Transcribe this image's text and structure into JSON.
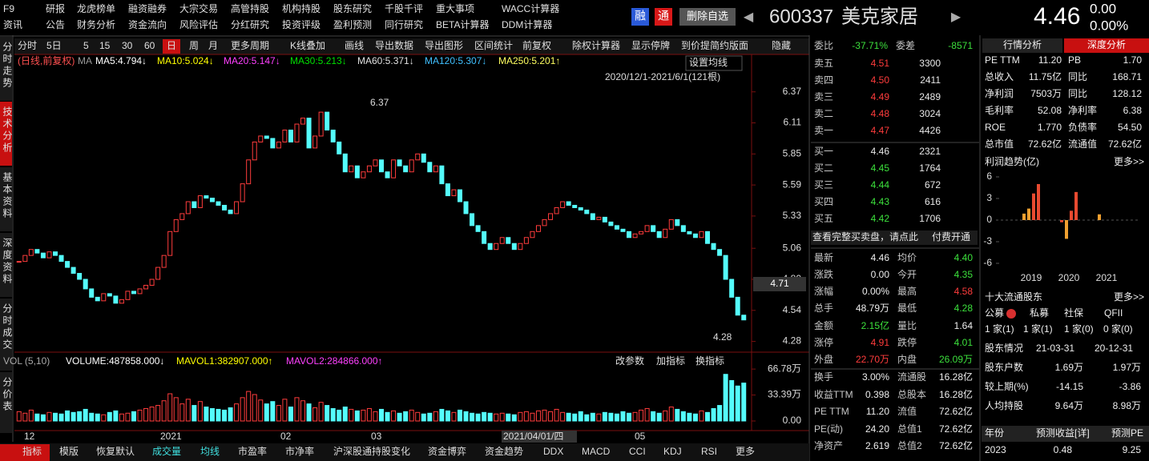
{
  "menu": {
    "row1": [
      "F9",
      "研报",
      "龙虎榜单",
      "融资融券",
      "大宗交易",
      "高管持股",
      "机构持股",
      "股东研究",
      "千股千评",
      "重大事项",
      "WACC计算器"
    ],
    "row2": [
      "资讯",
      "公告",
      "财务分析",
      "资金流向",
      "风险评估",
      "分红研究",
      "投资评级",
      "盈利预测",
      "同行研究",
      "BETA计算器",
      "DDM计算器"
    ]
  },
  "header": {
    "badges": [
      "融",
      "通"
    ],
    "button": "删除自选",
    "code": "600337",
    "name": "美克家居",
    "price": "4.46",
    "change": "0.00",
    "change_pct": "0.00%"
  },
  "side_tabs": [
    "分时走势",
    "技术分析",
    "基本资料",
    "深度资料",
    "分时成交",
    "分价表"
  ],
  "toolbar": [
    "分时",
    "5日",
    "5",
    "15",
    "30",
    "60",
    "日",
    "周",
    "月",
    "更多周期",
    "K线叠加",
    "画线",
    "导出数据",
    "导出图形",
    "区间统计",
    "前复权",
    "除权计算器",
    "显示停牌",
    "到价提",
    "简约版面",
    "隐藏"
  ],
  "kline": {
    "type": "candlestick",
    "legend_prefix": "(日线,前复权)",
    "ma_title": "MA",
    "ma": [
      {
        "label": "MA5:4.794↓",
        "color": "#ffffff"
      },
      {
        "label": "MA10:5.024↓",
        "color": "#ffff00"
      },
      {
        "label": "MA20:5.147↓",
        "color": "#ff40ff"
      },
      {
        "label": "MA30:5.213↓",
        "color": "#00e000"
      },
      {
        "label": "MA60:5.371↓",
        "color": "#e0e0e0"
      },
      {
        "label": "MA120:5.307↓",
        "color": "#40c0ff"
      },
      {
        "label": "MA250:5.201↑",
        "color": "#ffff60"
      }
    ],
    "set_ma": "设置均线",
    "range": "2020/12/1-2021/6/1(121根)",
    "closes": [
      4.95,
      5.0,
      5.05,
      5.02,
      4.98,
      5.03,
      5.0,
      4.95,
      4.9,
      4.85,
      4.8,
      4.72,
      4.65,
      4.62,
      4.68,
      4.66,
      4.6,
      4.63,
      4.7,
      4.68,
      4.72,
      4.75,
      4.8,
      4.9,
      5.0,
      5.2,
      5.3,
      5.35,
      5.45,
      5.4,
      5.5,
      5.48,
      5.45,
      5.42,
      5.38,
      5.35,
      5.45,
      5.6,
      5.8,
      5.95,
      6.0,
      5.98,
      5.9,
      5.95,
      6.05,
      5.95,
      6.1,
      6.15,
      5.9,
      6.0,
      6.2,
      6.05,
      5.95,
      5.85,
      5.7,
      5.75,
      5.65,
      5.7,
      5.75,
      5.8,
      5.7,
      5.65,
      5.8,
      5.75,
      5.7,
      5.8,
      5.85,
      5.78,
      5.7,
      5.75,
      5.6,
      5.5,
      5.55,
      5.45,
      5.35,
      5.25,
      5.2,
      5.1,
      5.05,
      5.1,
      5.15,
      5.1,
      5.05,
      5.1,
      5.15,
      5.2,
      5.25,
      5.3,
      5.35,
      5.4,
      5.45,
      5.42,
      5.4,
      5.38,
      5.35,
      5.3,
      5.32,
      5.28,
      5.25,
      5.22,
      5.2,
      5.15,
      5.18,
      5.2,
      5.25,
      5.2,
      5.15,
      5.22,
      5.3,
      5.25,
      5.2,
      5.18,
      5.15,
      5.2,
      5.1,
      5.05,
      5.0,
      4.8,
      4.65,
      4.5,
      4.46
    ],
    "ylim": [
      4.19,
      6.67
    ],
    "yticks": [
      6.37,
      6.11,
      5.85,
      5.59,
      5.33,
      5.06,
      {
        "value": 4.8,
        "label": "4.80"
      },
      4.54,
      4.28
    ],
    "high_label": "6.37",
    "low_label": "4.28",
    "cursor_label": "4.71",
    "up_color": "#ff3c3c",
    "down_color": "#54fcfc"
  },
  "volume": {
    "title": "VOL (5,10)",
    "items": [
      {
        "label": "VOLUME:487858.000↓",
        "color": "#ffffff"
      },
      {
        "label": "MAVOL1:382907.000↑",
        "color": "#ffff00"
      },
      {
        "label": "MAVOL2:284866.000↑",
        "color": "#ff40ff"
      }
    ],
    "buttons": [
      "改参数",
      "加指标",
      "换指标"
    ],
    "values": [
      12,
      10,
      14,
      9,
      8,
      11,
      10,
      9,
      13,
      11,
      12,
      15,
      10,
      9,
      8,
      11,
      13,
      9,
      10,
      12,
      14,
      16,
      18,
      20,
      26,
      35,
      30,
      22,
      28,
      20,
      25,
      18,
      16,
      15,
      14,
      17,
      22,
      30,
      38,
      34,
      27,
      22,
      25,
      20,
      28,
      18,
      30,
      26,
      22,
      17,
      24,
      20,
      16,
      14,
      18,
      15,
      13,
      14,
      16,
      12,
      15,
      11,
      13,
      10,
      12,
      14,
      11,
      9,
      10,
      12,
      15,
      13,
      11,
      14,
      12,
      10,
      9,
      11,
      10,
      9,
      10,
      9,
      8,
      11,
      12,
      10,
      13,
      14,
      12,
      15,
      11,
      10,
      9,
      12,
      8,
      10,
      9,
      11,
      10,
      9,
      12,
      10,
      11,
      14,
      16,
      12,
      10,
      13,
      18,
      15,
      12,
      10,
      9,
      13,
      11,
      16,
      20,
      60,
      52,
      45,
      48.79
    ],
    "ylim": [
      0,
      70
    ],
    "yticks": [
      {
        "value": 66.78,
        "label": "66.78万"
      },
      {
        "value": 33.39,
        "label": "33.39万"
      },
      {
        "value": 0,
        "label": "0.00"
      }
    ]
  },
  "x_labels": [
    "12",
    "2021",
    "02",
    "03",
    "2021/04/01/四",
    "05"
  ],
  "bottom_tabs": [
    "指标",
    "模版",
    "恢复默认",
    "成交量",
    "均线",
    "市盈率",
    "市净率",
    "沪深股通持股变化",
    "资金博弈",
    "资金趋势",
    "DDX",
    "MACD",
    "CCI",
    "KDJ",
    "RSI",
    "更多"
  ],
  "order_book": {
    "ratio_label": "委比",
    "ratio": "-37.71%",
    "diff_label": "委差",
    "diff": "-8571",
    "sells": [
      [
        "卖五",
        "4.51",
        "3300"
      ],
      [
        "卖四",
        "4.50",
        "2411"
      ],
      [
        "卖三",
        "4.49",
        "2489"
      ],
      [
        "卖二",
        "4.48",
        "3024"
      ],
      [
        "卖一",
        "4.47",
        "4426"
      ]
    ],
    "buys": [
      [
        "买一",
        "4.46",
        "2321"
      ],
      [
        "买二",
        "4.45",
        "1764"
      ],
      [
        "买三",
        "4.44",
        "672"
      ],
      [
        "买四",
        "4.43",
        "616"
      ],
      [
        "买五",
        "4.42",
        "1706"
      ]
    ],
    "link": "查看完整买卖盘，请点此",
    "link_action": "付费开通"
  },
  "quote_stats": [
    [
      "最新",
      "4.46",
      "均价",
      "4.40"
    ],
    [
      "涨跌",
      "0.00",
      "今开",
      "4.35"
    ],
    [
      "涨幅",
      "0.00%",
      "最高",
      "4.58"
    ],
    [
      "总手",
      "48.79万",
      "最低",
      "4.28"
    ],
    [
      "金额",
      "2.15亿",
      "量比",
      "1.64"
    ],
    [
      "涨停",
      "4.91",
      "跌停",
      "4.01"
    ],
    [
      "外盘",
      "22.70万",
      "内盘",
      "26.09万"
    ],
    [
      "换手",
      "3.00%",
      "流通股",
      "16.28亿"
    ],
    [
      "收益TTM",
      "0.398",
      "总股本",
      "16.28亿"
    ],
    [
      "PE TTM",
      "11.20",
      "流值",
      "72.62亿"
    ],
    [
      "PE(动)",
      "24.20",
      "总值1",
      "72.62亿"
    ],
    [
      "净资产",
      "2.619",
      "总值2",
      "72.62亿"
    ]
  ],
  "analysis": {
    "tabs": [
      "行情分析",
      "深度分析"
    ],
    "rows": [
      [
        "PE TTM",
        "11.20",
        "PB",
        "1.70"
      ],
      [
        "总收入",
        "11.75亿",
        "同比",
        "168.71"
      ],
      [
        "净利润",
        "7503万",
        "同比",
        "128.12"
      ],
      [
        "毛利率",
        "52.08",
        "净利率",
        "6.38"
      ],
      [
        "ROE",
        "1.770",
        "负债率",
        "54.50"
      ],
      [
        "总市值",
        "72.62亿",
        "流通值",
        "72.62亿"
      ]
    ],
    "profit": {
      "type": "bar",
      "title": "利润趋势(亿)",
      "more": "更多>>",
      "categories": [
        "2019",
        "2020",
        "2021"
      ],
      "values": [
        0.9,
        1.6,
        3.7,
        5.0,
        -0.3,
        -2.6,
        1.3,
        3.9,
        0.8
      ],
      "colors": [
        "#f0a030",
        "#f0a030",
        "#e84a30",
        "#e84a30",
        "#e84a30",
        "#f0a030",
        "#e84a30",
        "#e84a30",
        "#f0a030"
      ],
      "ylim": [
        -7,
        7
      ],
      "yticks": [
        6,
        3,
        0,
        -3,
        -6
      ]
    },
    "holders": {
      "title": "十大流通股东",
      "more": "更多>>",
      "types": [
        "公募",
        "私募",
        "社保",
        "QFII"
      ],
      "counts": [
        "1 家(1)",
        "1 家(1)",
        "1 家(0)",
        "0 家(0)"
      ],
      "table": [
        [
          "股东情况",
          "21-03-31",
          "20-12-31"
        ],
        [
          "股东户数",
          "1.69万",
          "1.97万"
        ],
        [
          "较上期(%)",
          "-14.15",
          "-3.86"
        ],
        [
          "人均持股",
          "9.64万",
          "8.98万"
        ]
      ]
    },
    "forecast": {
      "header": [
        "年份",
        "预测收益[详]",
        "预测PE"
      ],
      "row": [
        "2023",
        "0.48",
        "9.25"
      ]
    }
  }
}
